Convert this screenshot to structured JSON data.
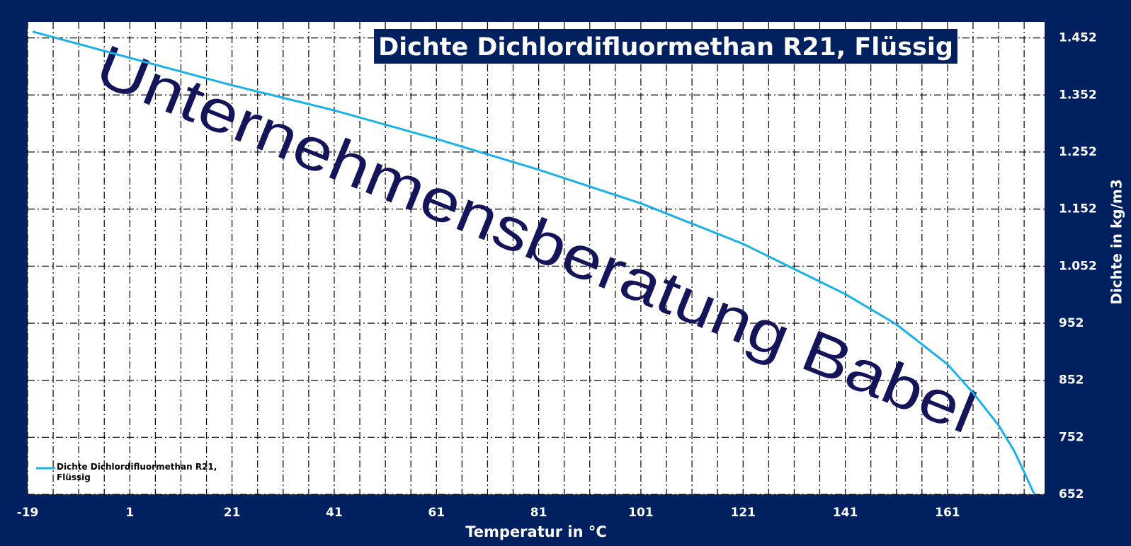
{
  "chart_data": {
    "type": "line",
    "title": "Dichte Dichlordifluormethan R21, Flüssig",
    "watermark": "Unternehmensberatung Babel",
    "x_label": "Temperatur in °C",
    "y_label": "Dichte in kg/m3",
    "x": [
      -18,
      1,
      21,
      41,
      61,
      81,
      101,
      121,
      141,
      151,
      161,
      166,
      171,
      174,
      176,
      178
    ],
    "series": [
      {
        "name": "Dichte Dichlordifluormethan R21, Flüssig",
        "color": "#1ab0e8",
        "values": [
          1463,
          1417,
          1369,
          1325,
          1275,
          1221,
          1162,
          1091,
          1003,
          950,
          880,
          830,
          773,
          729,
          691,
          652
        ]
      }
    ],
    "xlim": [
      -19,
      180
    ],
    "xticks": [
      -19,
      1,
      21,
      41,
      61,
      81,
      101,
      121,
      141,
      161
    ],
    "ylim": [
      652,
      1480
    ],
    "yticks": [
      652,
      752,
      852,
      952,
      {
        "value": 1052,
        "label": "1.052"
      },
      {
        "value": 1152,
        "label": "1.152"
      },
      {
        "value": 1252,
        "label": "1.252"
      },
      {
        "value": 1352,
        "label": "1.352"
      },
      {
        "value": 1452,
        "label": "1.452"
      }
    ],
    "grid": true,
    "legend": "lower left"
  }
}
